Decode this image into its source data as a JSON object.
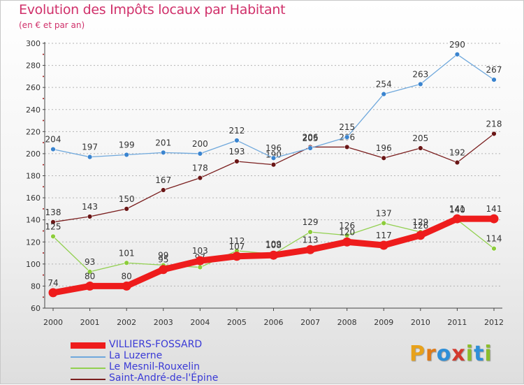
{
  "title": "Evolution des Impôts locaux par Habitant",
  "subtitle": "(en € et par an)",
  "brand": {
    "letters": [
      "P",
      "r",
      "o",
      "x",
      "i",
      "t",
      "i"
    ],
    "colors": [
      "#e8a21b",
      "#e07b18",
      "#2e8fd8",
      "#d33a2e",
      "#8bbd2b",
      "#2e8fd8",
      "#8bbd2b"
    ]
  },
  "chart_data": {
    "type": "line",
    "categories": [
      "2000",
      "2001",
      "2002",
      "2003",
      "2004",
      "2005",
      "2006",
      "2007",
      "2008",
      "2009",
      "2010",
      "2011",
      "2012"
    ],
    "ylim": [
      60,
      300
    ],
    "yticks": [
      60,
      80,
      100,
      120,
      140,
      160,
      180,
      200,
      220,
      240,
      260,
      280,
      300
    ],
    "grid": "horizontal dashed",
    "legend_position": "bottom-left",
    "series": [
      {
        "name": "Saint-André-de-l'Épine",
        "color": "#7a1e1e",
        "marker_color": "#6a1616",
        "values": [
          138,
          143,
          150,
          167,
          178,
          193,
          190,
          206,
          206,
          196,
          205,
          192,
          218
        ],
        "labels": [
          "138",
          "143",
          "150",
          "167",
          "178",
          "193",
          "190",
          "206",
          "206",
          "196",
          "205",
          "192",
          "218"
        ]
      },
      {
        "name": "Le Mesnil-Rouxelin",
        "color": "#92d050",
        "marker_color": "#8ccc3a",
        "values": [
          125,
          93,
          101,
          99,
          97,
          112,
          109,
          129,
          126,
          137,
          129,
          140,
          114
        ],
        "labels": [
          "125",
          "93",
          "101",
          "99",
          "97",
          "112",
          "109",
          "129",
          "126",
          "137",
          "129",
          "140",
          "114"
        ]
      },
      {
        "name": "La Luzerne",
        "color": "#6fa8dc",
        "marker_color": "#3a84cf",
        "values": [
          204,
          197,
          199,
          201,
          200,
          212,
          196,
          205,
          215,
          254,
          263,
          290,
          267
        ],
        "labels": [
          "204",
          "197",
          "199",
          "201",
          "200",
          "212",
          "196",
          "205",
          "215",
          "254",
          "263",
          "290",
          "267"
        ]
      },
      {
        "name": "VILLIERS-FOSSARD",
        "color": "#ee1c1c",
        "marker_color": "#ee1c1c",
        "values": [
          74,
          80,
          80,
          95,
          103,
          107,
          108,
          113,
          120,
          117,
          126,
          141,
          141
        ],
        "labels": [
          "74",
          "80",
          "80",
          "95",
          "103",
          "107",
          "108",
          "113",
          "120",
          "117",
          "126",
          "141",
          "141"
        ]
      }
    ]
  }
}
